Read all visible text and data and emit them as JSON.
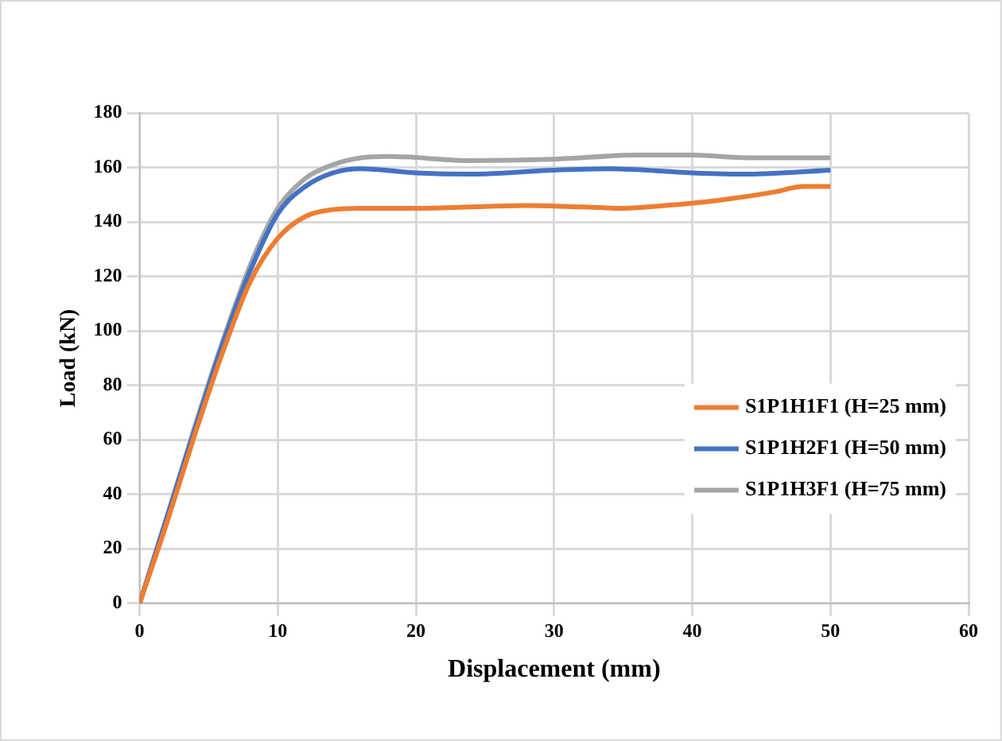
{
  "chart_data": {
    "type": "line",
    "xlabel": "Displacement (mm)",
    "ylabel": "Load (kN)",
    "xlim": [
      0,
      60
    ],
    "xticks": [
      0,
      10,
      20,
      30,
      40,
      50,
      60
    ],
    "ylim": [
      0,
      180
    ],
    "yticks": [
      0,
      20,
      40,
      60,
      80,
      100,
      120,
      140,
      160,
      180
    ],
    "grid": true,
    "legend": "right",
    "marker": "none",
    "line_style": "solid",
    "series": [
      {
        "name": "S1P1H1F1 (H=25 mm)",
        "color": "#ed7d31",
        "x": [
          0,
          2,
          4,
          6,
          8,
          10,
          12,
          14,
          16,
          20,
          24,
          28,
          32,
          35,
          38,
          42,
          46,
          48,
          50
        ],
        "values": [
          0,
          30,
          62,
          92,
          118,
          134,
          142,
          144.5,
          145,
          145,
          145.5,
          146,
          145.5,
          145,
          146,
          148,
          151,
          153,
          153
        ]
      },
      {
        "name": "S1P1H2F1 (H=50 mm)",
        "color": "#4472c4",
        "x": [
          0,
          2,
          4,
          6,
          8,
          10,
          12,
          14,
          16,
          20,
          24,
          30,
          34,
          40,
          44,
          50
        ],
        "values": [
          0,
          32,
          64,
          95,
          122,
          143,
          153,
          158,
          159.5,
          158,
          157.5,
          159,
          159.5,
          158,
          157.5,
          159
        ]
      },
      {
        "name": "S1P1H3F1 (H=75 mm)",
        "color": "#a5a5a5",
        "x": [
          0,
          2,
          4,
          6,
          8,
          10,
          12,
          14,
          16,
          18,
          24,
          30,
          36,
          40,
          44,
          50
        ],
        "values": [
          0,
          32,
          65,
          96,
          124,
          145,
          156,
          161,
          163.5,
          164,
          162.5,
          163,
          164.5,
          164.5,
          163.5,
          163.5
        ]
      }
    ]
  }
}
